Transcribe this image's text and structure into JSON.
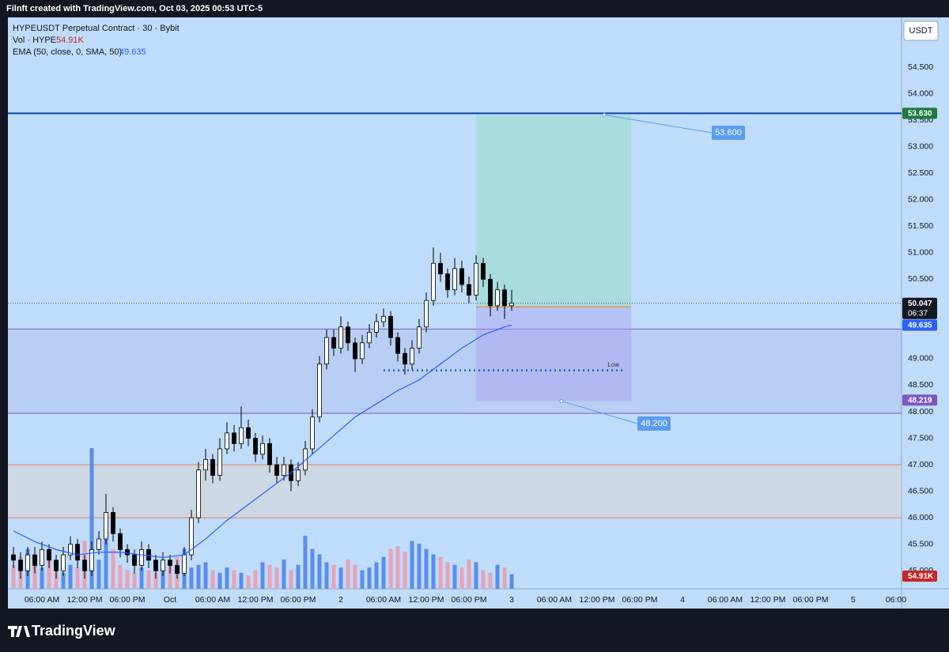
{
  "header": {
    "text": "Filnft created with TradingView.com, Oct 03, 2025 00:53 UTC-5"
  },
  "footer": {
    "logo": "TradingView"
  },
  "currency_button": "USDT",
  "chart_data": {
    "type": "candlestick",
    "title": "HYPEUSDT Perpetual Contract · 30 · Bybit",
    "x": [
      -22,
      -21,
      -20,
      -19,
      -18,
      -17,
      -16,
      -15,
      -14,
      -13,
      -12,
      -11,
      -10,
      -9,
      -8,
      -7,
      -6,
      -5,
      -4,
      -3,
      -2,
      -1,
      0,
      1,
      2,
      3,
      4,
      5,
      6,
      7,
      8,
      9,
      10,
      11,
      12,
      13,
      14,
      15,
      16,
      17,
      18,
      19,
      20,
      21,
      22,
      23,
      24,
      25,
      26,
      27,
      28,
      29,
      30,
      31,
      32,
      33,
      34,
      35,
      36,
      37,
      38,
      39,
      40,
      41,
      42,
      43,
      44,
      45,
      46,
      47,
      48
    ],
    "ohlc": [
      [
        45.3,
        45.45,
        45.05,
        45.2
      ],
      [
        45.2,
        45.35,
        44.85,
        45.0
      ],
      [
        45.0,
        45.45,
        44.9,
        45.3
      ],
      [
        45.3,
        45.45,
        44.95,
        45.1
      ],
      [
        45.1,
        45.55,
        45.0,
        45.4
      ],
      [
        45.4,
        45.5,
        45.05,
        45.2
      ],
      [
        45.2,
        45.3,
        44.85,
        45.0
      ],
      [
        45.0,
        45.45,
        44.9,
        45.3
      ],
      [
        45.3,
        45.65,
        45.2,
        45.5
      ],
      [
        45.5,
        45.6,
        45.05,
        45.2
      ],
      [
        45.2,
        45.3,
        44.85,
        45.0
      ],
      [
        45.0,
        45.55,
        44.9,
        45.4
      ],
      [
        45.4,
        45.75,
        45.3,
        45.6
      ],
      [
        45.6,
        46.45,
        45.5,
        46.1
      ],
      [
        46.1,
        46.2,
        45.55,
        45.7
      ],
      [
        45.7,
        45.8,
        45.25,
        45.4
      ],
      [
        45.4,
        45.5,
        45.15,
        45.3
      ],
      [
        45.3,
        45.4,
        44.95,
        45.1
      ],
      [
        45.1,
        45.55,
        45.0,
        45.4
      ],
      [
        45.4,
        45.5,
        45.05,
        45.2
      ],
      [
        45.2,
        45.3,
        44.85,
        45.0
      ],
      [
        45.0,
        45.35,
        44.9,
        45.2
      ],
      [
        45.2,
        45.3,
        44.95,
        45.1
      ],
      [
        45.1,
        45.2,
        44.85,
        44.95
      ],
      [
        44.95,
        45.45,
        44.9,
        45.3
      ],
      [
        45.3,
        46.15,
        45.2,
        46.0
      ],
      [
        46.0,
        47.05,
        45.9,
        46.9
      ],
      [
        46.9,
        47.3,
        46.7,
        47.1
      ],
      [
        47.1,
        47.2,
        46.65,
        46.8
      ],
      [
        46.8,
        47.5,
        46.7,
        47.3
      ],
      [
        47.3,
        47.8,
        47.2,
        47.6
      ],
      [
        47.6,
        47.75,
        47.25,
        47.4
      ],
      [
        47.4,
        48.1,
        47.3,
        47.7
      ],
      [
        47.7,
        47.85,
        47.35,
        47.5
      ],
      [
        47.5,
        47.6,
        47.05,
        47.2
      ],
      [
        47.2,
        47.55,
        47.1,
        47.4
      ],
      [
        47.4,
        47.5,
        46.85,
        47.0
      ],
      [
        47.0,
        47.15,
        46.65,
        46.8
      ],
      [
        46.8,
        47.15,
        46.7,
        47.0
      ],
      [
        47.0,
        47.1,
        46.5,
        46.7
      ],
      [
        46.7,
        47.05,
        46.6,
        46.9
      ],
      [
        46.9,
        47.45,
        46.8,
        47.3
      ],
      [
        47.3,
        48.05,
        47.2,
        47.9
      ],
      [
        47.9,
        49.05,
        47.8,
        48.9
      ],
      [
        48.9,
        49.55,
        48.8,
        49.4
      ],
      [
        49.4,
        49.55,
        49.05,
        49.2
      ],
      [
        49.2,
        49.8,
        49.1,
        49.6
      ],
      [
        49.6,
        49.7,
        49.15,
        49.3
      ],
      [
        49.3,
        49.4,
        48.75,
        49.0
      ],
      [
        49.0,
        49.45,
        48.9,
        49.3
      ],
      [
        49.3,
        49.65,
        49.2,
        49.5
      ],
      [
        49.5,
        49.85,
        49.4,
        49.7
      ],
      [
        49.7,
        49.95,
        49.6,
        49.8
      ],
      [
        49.8,
        49.9,
        49.25,
        49.4
      ],
      [
        49.4,
        49.5,
        48.95,
        49.1
      ],
      [
        49.1,
        49.2,
        48.7,
        48.9
      ],
      [
        48.9,
        49.35,
        48.8,
        49.2
      ],
      [
        49.2,
        49.75,
        49.1,
        49.6
      ],
      [
        49.6,
        50.25,
        49.5,
        50.1
      ],
      [
        50.1,
        51.1,
        50.0,
        50.8
      ],
      [
        50.8,
        51.0,
        50.45,
        50.6
      ],
      [
        50.6,
        50.7,
        50.15,
        50.3
      ],
      [
        50.3,
        50.9,
        50.2,
        50.7
      ],
      [
        50.7,
        50.85,
        50.25,
        50.4
      ],
      [
        50.4,
        50.55,
        50.05,
        50.2
      ],
      [
        50.2,
        50.95,
        50.1,
        50.8
      ],
      [
        50.8,
        50.9,
        50.35,
        50.5
      ],
      [
        50.5,
        50.6,
        49.8,
        50.0
      ],
      [
        50.0,
        50.45,
        49.9,
        50.3
      ],
      [
        50.3,
        50.4,
        49.75,
        50.0
      ],
      [
        50.0,
        50.3,
        49.9,
        50.047
      ]
    ],
    "up_color": "#ffffff",
    "down_color": "#000000",
    "countdown": "06:37",
    "volume": {
      "name": "Vol · HYPE",
      "values": [
        90,
        120,
        150,
        100,
        80,
        110,
        70,
        60,
        90,
        80,
        180,
        530,
        110,
        200,
        150,
        90,
        70,
        60,
        80,
        70,
        60,
        90,
        110,
        120,
        150,
        80,
        90,
        100,
        70,
        60,
        80,
        70,
        60,
        50,
        70,
        100,
        90,
        80,
        110,
        70,
        90,
        200,
        150,
        130,
        100,
        90,
        80,
        110,
        90,
        70,
        80,
        100,
        120,
        150,
        160,
        140,
        180,
        170,
        150,
        130,
        120,
        100,
        90,
        80,
        110,
        100,
        70,
        60,
        90,
        80,
        54.91
      ],
      "last_label": "54.91K",
      "up_color": "#5b8def",
      "down_color": "#e8a3b8",
      "badge_color": "#c62828"
    },
    "ema": {
      "name": "EMA (50, close, 0, SMA, 50)",
      "color": "#2962ff",
      "x": [
        -22,
        -19,
        -16,
        -13,
        -10,
        -7,
        -4,
        -1,
        2,
        5,
        8,
        11,
        14,
        17,
        20,
        23,
        26,
        29,
        32,
        35,
        38,
        41,
        44,
        47,
        48
      ],
      "values": [
        45.75,
        45.55,
        45.4,
        45.3,
        45.35,
        45.35,
        45.3,
        45.25,
        45.3,
        45.6,
        45.95,
        46.25,
        46.55,
        46.85,
        47.2,
        47.55,
        47.9,
        48.15,
        48.4,
        48.6,
        48.9,
        49.2,
        49.45,
        49.6,
        49.635
      ],
      "last_label": "49.635"
    },
    "xlim": [
      -22.78,
      102.78
    ],
    "xticks": [
      {
        "value": -18,
        "label": "06:00 AM"
      },
      {
        "value": -12,
        "label": "12:00 PM"
      },
      {
        "value": -6,
        "label": "06:00 PM"
      },
      {
        "value": 0,
        "label": "Oct"
      },
      {
        "value": 6,
        "label": "06:00 AM"
      },
      {
        "value": 12,
        "label": "12:00 PM"
      },
      {
        "value": 18,
        "label": "06:00 PM"
      },
      {
        "value": 24,
        "label": "2"
      },
      {
        "value": 30,
        "label": "06:00 AM"
      },
      {
        "value": 36,
        "label": "12:00 PM"
      },
      {
        "value": 42,
        "label": "06:00 PM"
      },
      {
        "value": 48,
        "label": "3"
      },
      {
        "value": 54,
        "label": "06:00 AM"
      },
      {
        "value": 60,
        "label": "12:00 PM"
      },
      {
        "value": 66,
        "label": "06:00 PM"
      },
      {
        "value": 72,
        "label": "4"
      },
      {
        "value": 78,
        "label": "06:00 AM"
      },
      {
        "value": 84,
        "label": "12:00 PM"
      },
      {
        "value": 90,
        "label": "06:00 PM"
      },
      {
        "value": 96,
        "label": "5"
      },
      {
        "value": 102,
        "label": "06:00"
      }
    ],
    "ylim": [
      44.66,
      55.44
    ],
    "yticks": [
      {
        "value": 54.5,
        "label": "54.500"
      },
      {
        "value": 54,
        "label": "54.000"
      },
      {
        "value": 53.5,
        "label": "53.500"
      },
      {
        "value": 53,
        "label": "53.000"
      },
      {
        "value": 52.5,
        "label": "52.500"
      },
      {
        "value": 52,
        "label": "52.000"
      },
      {
        "value": 51.5,
        "label": "51.500"
      },
      {
        "value": 51,
        "label": "51.000"
      },
      {
        "value": 50.5,
        "label": "50.500"
      },
      {
        "value": 49,
        "label": "49.000"
      },
      {
        "value": 48.5,
        "label": "48.500"
      },
      {
        "value": 48,
        "label": "48.000"
      },
      {
        "value": 47.5,
        "label": "47.500"
      },
      {
        "value": 47,
        "label": "47.000"
      },
      {
        "value": 46.5,
        "label": "46.500"
      },
      {
        "value": 46,
        "label": "46.000"
      },
      {
        "value": 45.5,
        "label": "45.500"
      },
      {
        "value": 45,
        "label": "45.000"
      }
    ],
    "resistance": {
      "value": 53.63,
      "label": "53.630",
      "color": "#0d47a1",
      "badge_color": "#1b7a3e"
    },
    "zones": [
      {
        "from": 47.97,
        "to": 49.56,
        "color": "#7e57c2",
        "fill": "rgba(126,87,194,0.10)"
      },
      {
        "from": 46.0,
        "to": 47.0,
        "color": "#e0826b",
        "fill": "rgba(220,210,200,0.45)"
      }
    ],
    "position": {
      "entry": 49.979,
      "target": {
        "value": 53.6,
        "label": "53.600"
      },
      "stop": {
        "value": 48.2,
        "label": "48.200"
      },
      "x": [
        43,
        64.8
      ],
      "entry_color": "#f57c00",
      "label_color": "#5b9cf0"
    },
    "marker_badge": {
      "value": 48.219,
      "color": "#7e57c2"
    },
    "low_line": {
      "label": "Low",
      "value": 48.78,
      "x": [
        30,
        64
      ],
      "color": "#1565c0"
    }
  }
}
